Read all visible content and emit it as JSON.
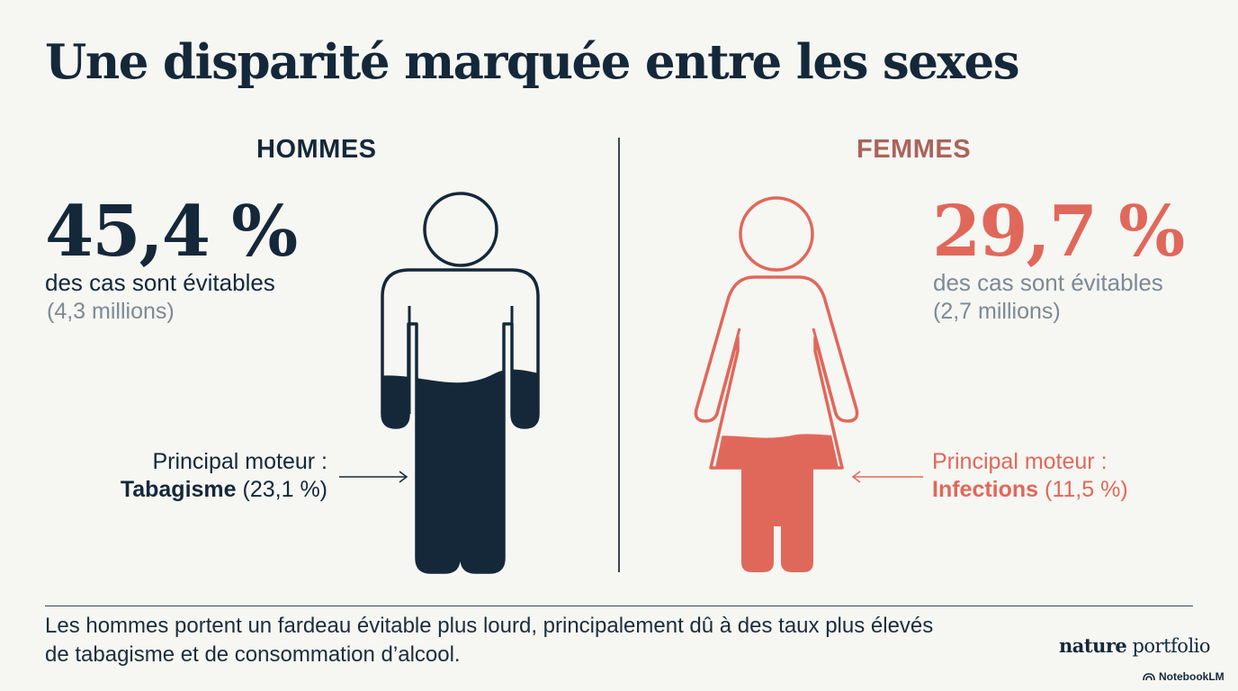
{
  "title": "Une disparité marquée entre les sexes",
  "men": {
    "heading": "HOMMES",
    "percent": "45,4 %",
    "percent_value": 45.4,
    "subtitle": "des cas sont évitables",
    "count": "(4,3 millions)",
    "driver_label": "Principal moteur :",
    "driver_name": "Tabagisme",
    "driver_value": "(23,1 %)",
    "color": "#14283a"
  },
  "women": {
    "heading": "FEMMES",
    "percent": "29,7 %",
    "percent_value": 29.7,
    "subtitle": "des cas sont évitables",
    "count": "(2,7 millions)",
    "driver_label": "Principal moteur :",
    "driver_name": "Infections",
    "driver_value": "(11,5 %)",
    "color": "#e0685b"
  },
  "footer": {
    "line1": "Les hommes portent un fardeau évitable plus lourd, principalement dû à des taux plus élevés",
    "line2": "de tabagisme et de consommation d’alcool."
  },
  "brand": {
    "nature": "nature",
    "portfolio": "portfolio",
    "notebooklm": "NotebookLM"
  }
}
